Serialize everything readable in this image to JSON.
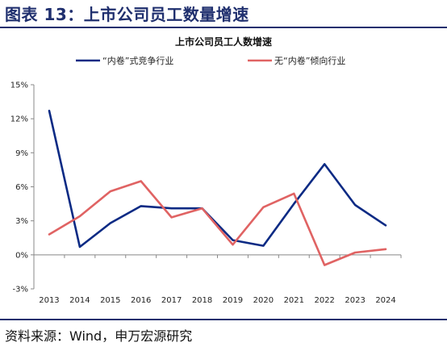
{
  "figure_title": "图表 13：上市公司员工数量增速",
  "source": "资料来源：Wind，申万宏源研究",
  "colors": {
    "brand": "#1f2f6e",
    "series_1": "#0b2a84",
    "series_2": "#e06363"
  },
  "chart_data": {
    "type": "line",
    "title": "上市公司员工人数增速",
    "xlabel": "",
    "ylabel": "",
    "x": [
      "2013",
      "2014",
      "2015",
      "2016",
      "2017",
      "2018",
      "2019",
      "2020",
      "2021",
      "2022",
      "2023",
      "2024"
    ],
    "ylim": [
      -3,
      15
    ],
    "yticks": [
      -3,
      0,
      3,
      6,
      9,
      12,
      15
    ],
    "ytick_labels": [
      "-3%",
      "0%",
      "3%",
      "6%",
      "9%",
      "12%",
      "15%"
    ],
    "grid": false,
    "legend_position": "top",
    "series": [
      {
        "name": "“内卷”式竞争行业",
        "color": "#0b2a84",
        "values": [
          12.7,
          0.7,
          2.8,
          4.3,
          4.1,
          4.1,
          1.3,
          0.8,
          4.5,
          8.0,
          4.4,
          2.6
        ]
      },
      {
        "name": "无“内卷”倾向行业",
        "color": "#e06363",
        "values": [
          1.8,
          3.4,
          5.6,
          6.5,
          3.3,
          4.1,
          0.9,
          4.2,
          5.4,
          -0.9,
          0.2,
          0.5
        ]
      }
    ]
  }
}
